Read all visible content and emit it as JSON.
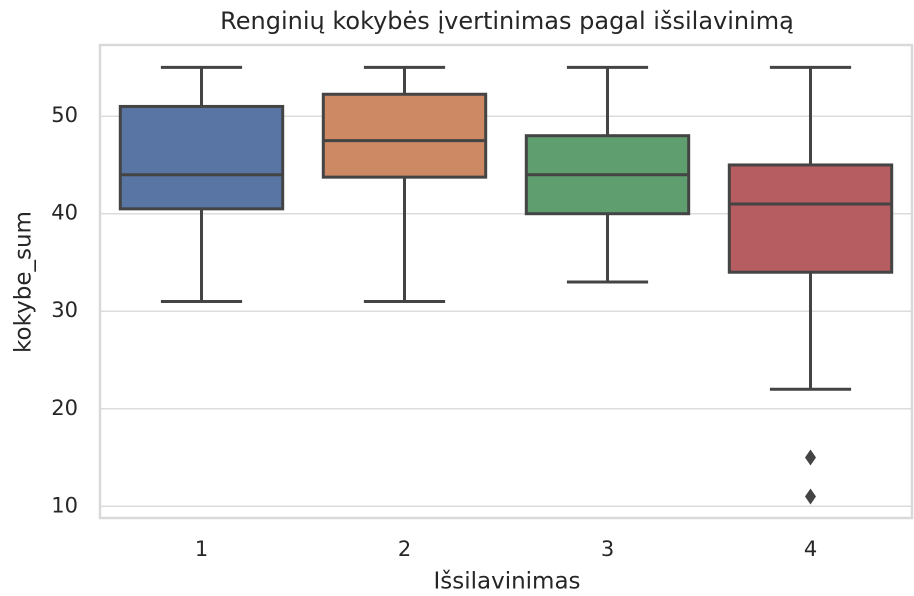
{
  "chart_data": {
    "type": "box",
    "title": "Renginių kokybės įvertinimas pagal išsilavinimą",
    "xlabel": "Išsilavinimas",
    "ylabel": "kokybe_sum",
    "categories": [
      "1",
      "2",
      "3",
      "4"
    ],
    "boxes": [
      {
        "color": "#5975a4",
        "whislo": 31,
        "q1": 40.5,
        "med": 44,
        "q3": 51,
        "whishi": 55,
        "fliers": []
      },
      {
        "color": "#cc8963",
        "whislo": 31,
        "q1": 43.75,
        "med": 47.5,
        "q3": 52.25,
        "whishi": 55,
        "fliers": []
      },
      {
        "color": "#5f9e6e",
        "whislo": 33,
        "q1": 40,
        "med": 44,
        "q3": 48,
        "whishi": 55,
        "fliers": []
      },
      {
        "color": "#b55d60",
        "whislo": 22,
        "q1": 34,
        "med": 41,
        "q3": 45,
        "whishi": 55,
        "fliers": [
          15,
          11
        ]
      }
    ],
    "ylim": [
      8.8,
      57.3
    ],
    "yticks": [
      10,
      20,
      30,
      40,
      50
    ],
    "grid": true
  }
}
